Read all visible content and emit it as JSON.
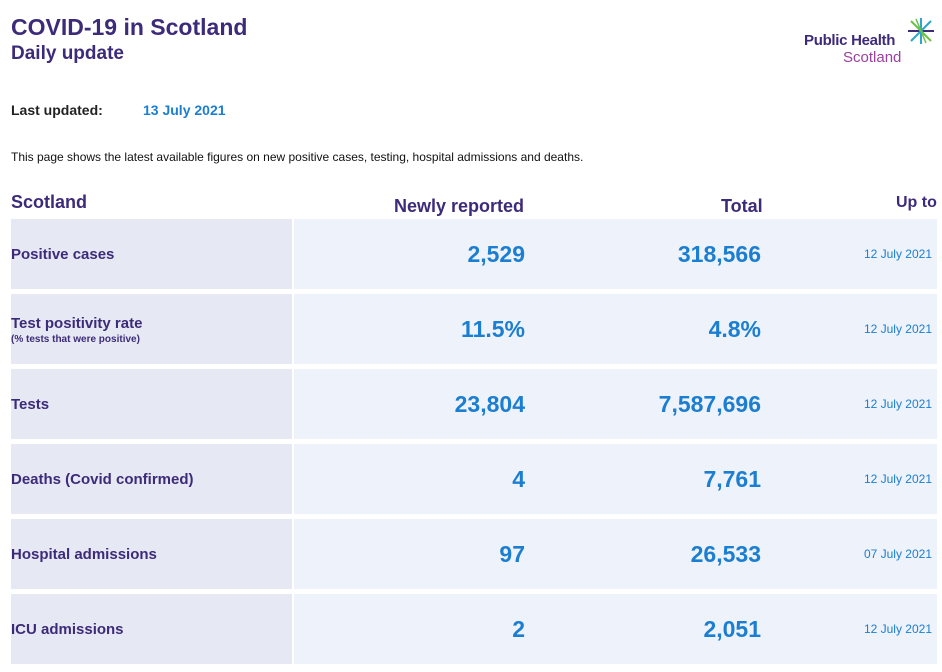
{
  "header": {
    "title": "COVID-19 in Scotland",
    "subtitle": "Daily update"
  },
  "logo": {
    "line1": "Public Health",
    "line2": "Scotland"
  },
  "updated": {
    "label": "Last updated:",
    "value": "13 July 2021"
  },
  "intro": "This page shows the latest available figures on new positive cases, testing, hospital admissions and deaths.",
  "table": {
    "headers": {
      "region": "Scotland",
      "new": "Newly reported",
      "total": "Total",
      "upto": "Up to"
    },
    "rows": [
      {
        "label": "Positive cases",
        "sub": "",
        "new": "2,529",
        "total": "318,566",
        "date": "12 July 2021"
      },
      {
        "label": "Test positivity rate",
        "sub": "(% tests that were positive)",
        "new": "11.5%",
        "total": "4.8%",
        "date": "12 July 2021"
      },
      {
        "label": "Tests",
        "sub": "",
        "new": "23,804",
        "total": "7,587,696",
        "date": "12 July 2021"
      },
      {
        "label": "Deaths (Covid confirmed)",
        "sub": "",
        "new": "4",
        "total": "7,761",
        "date": "12 July 2021"
      },
      {
        "label": "Hospital admissions",
        "sub": "",
        "new": "97",
        "total": "26,533",
        "date": "07 July 2021"
      },
      {
        "label": "ICU admissions",
        "sub": "",
        "new": "2",
        "total": "2,051",
        "date": "12 July 2021"
      }
    ]
  },
  "colors": {
    "brand_purple": "#3d2b7a",
    "value_blue": "#1b7ed1",
    "logo_magenta": "#9b3fa0"
  }
}
